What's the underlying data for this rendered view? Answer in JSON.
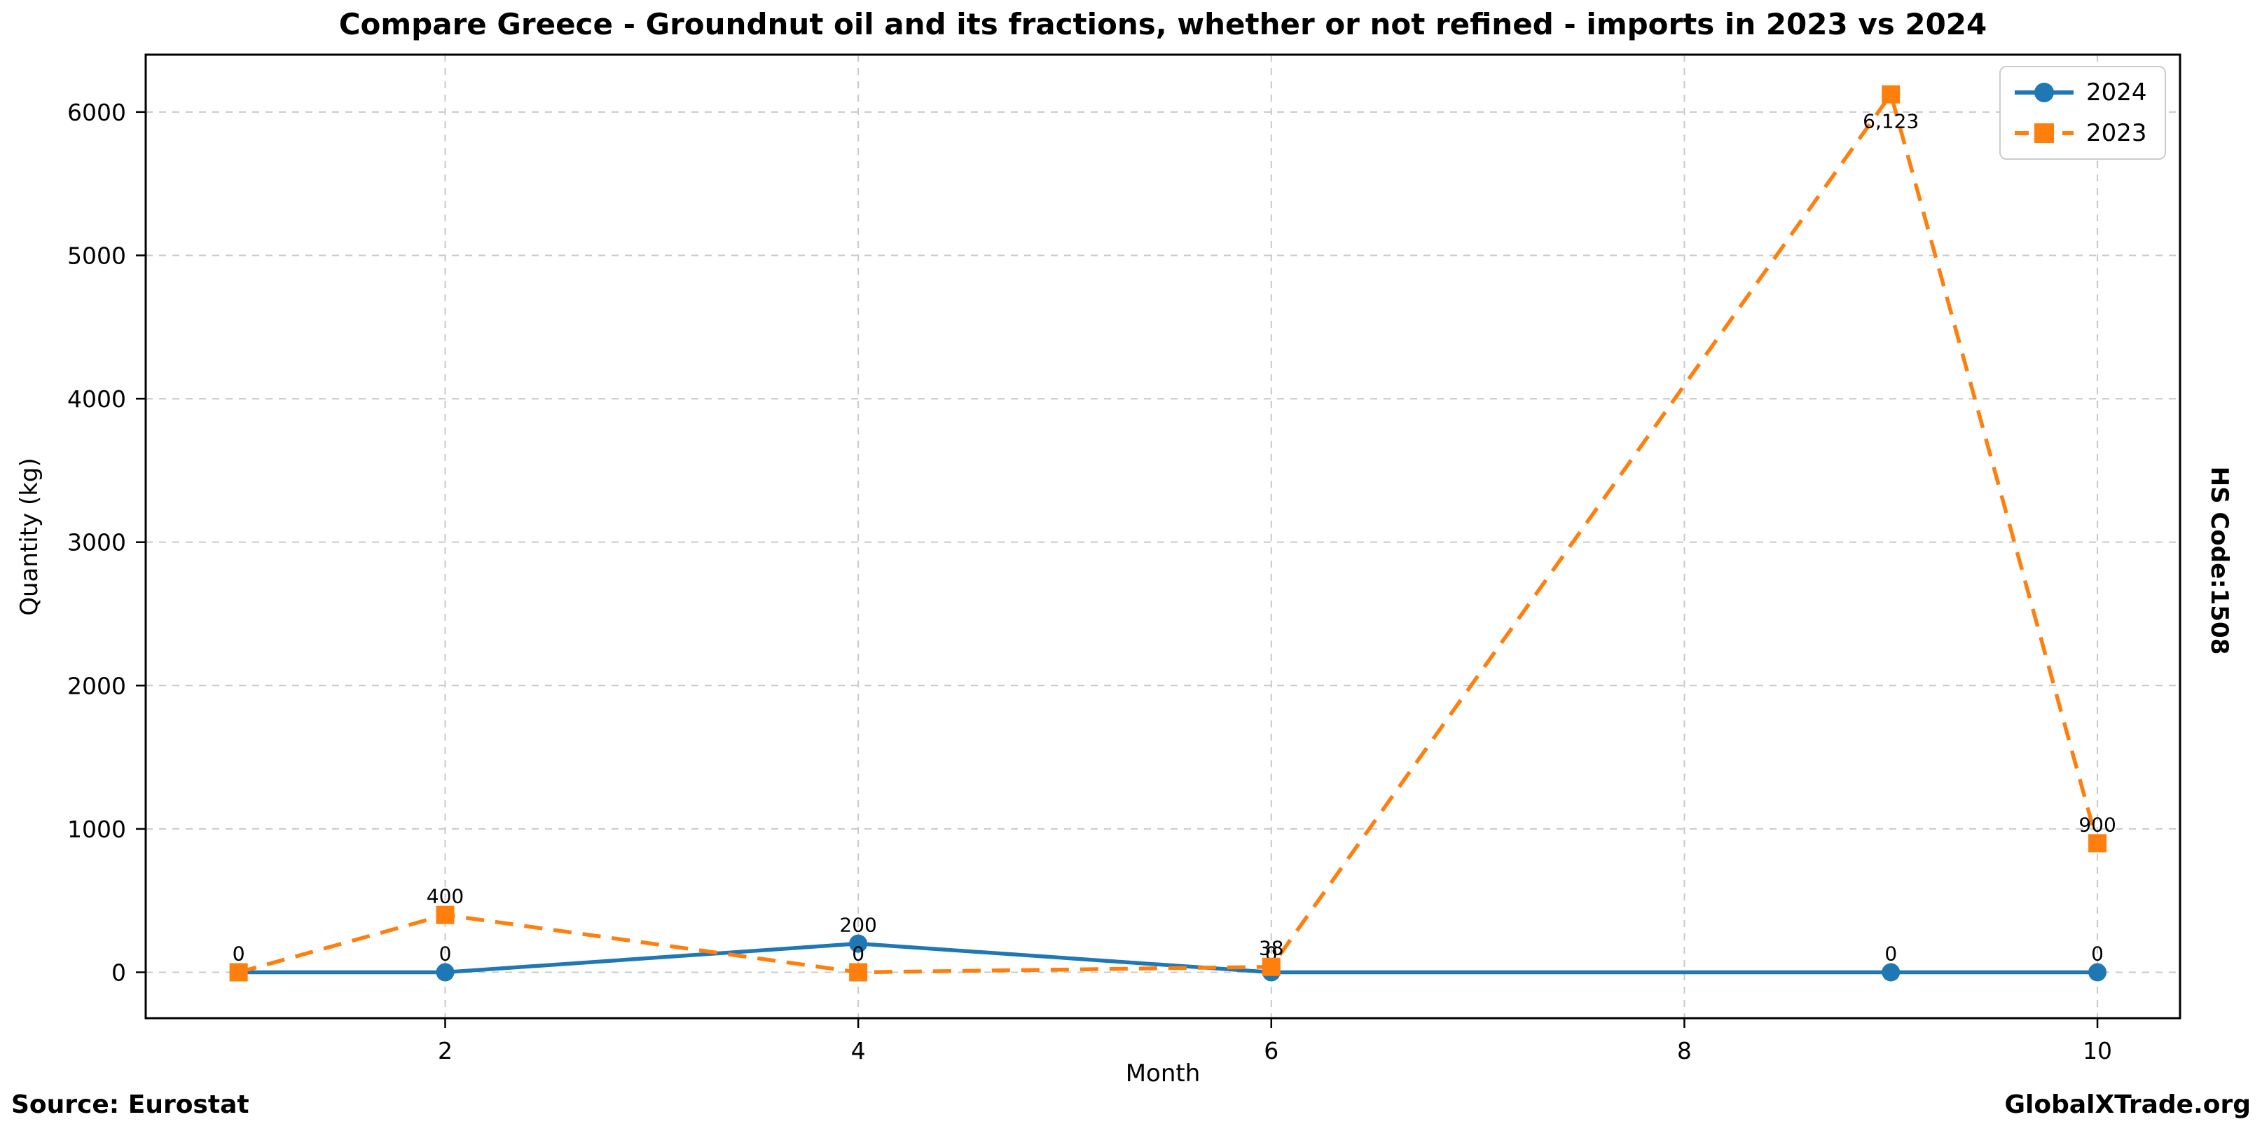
{
  "title": "Compare Greece - Groundnut oil and its fractions, whether or not refined - imports in 2023 vs 2024",
  "footer": {
    "source": "Source: Eurostat",
    "brand": "GlobalXTrade.org"
  },
  "chart_data": {
    "type": "line",
    "title": "Compare Greece - Groundnut oil and its fractions, whether or not refined - imports in 2023 vs 2024",
    "xlabel": "Month",
    "ylabel": "Quantity (kg)",
    "right_label": "HS Code:1508",
    "x": [
      1,
      2,
      4,
      6,
      9,
      10
    ],
    "series": [
      {
        "name": "2024",
        "color": "#1f77b4",
        "line_style": "solid",
        "marker": "circle",
        "values": [
          0,
          0,
          200,
          0,
          0,
          0
        ],
        "labels": [
          "0",
          "0",
          "200",
          "0",
          "0",
          "0"
        ],
        "label_positions": [
          "above",
          "above",
          "above",
          "above",
          "above",
          "above"
        ]
      },
      {
        "name": "2023",
        "color": "#ff7f0e",
        "line_style": "dashed",
        "marker": "square",
        "values": [
          0,
          400,
          0,
          38,
          6123,
          900
        ],
        "labels": [
          "0",
          "400",
          "0",
          "38",
          "6,123",
          "900"
        ],
        "label_positions": [
          "above",
          "above",
          "above",
          "above",
          "below",
          "above"
        ]
      }
    ],
    "xticks": [
      2,
      4,
      6,
      8,
      10
    ],
    "yticks": [
      0,
      1000,
      2000,
      3000,
      4000,
      5000,
      6000
    ],
    "xlim": [
      0.55,
      10.4
    ],
    "ylim": [
      -320,
      6400
    ],
    "grid": true,
    "grid_color": "#c9c9c9",
    "axis_color": "#000000",
    "legend_position": "upper right"
  }
}
